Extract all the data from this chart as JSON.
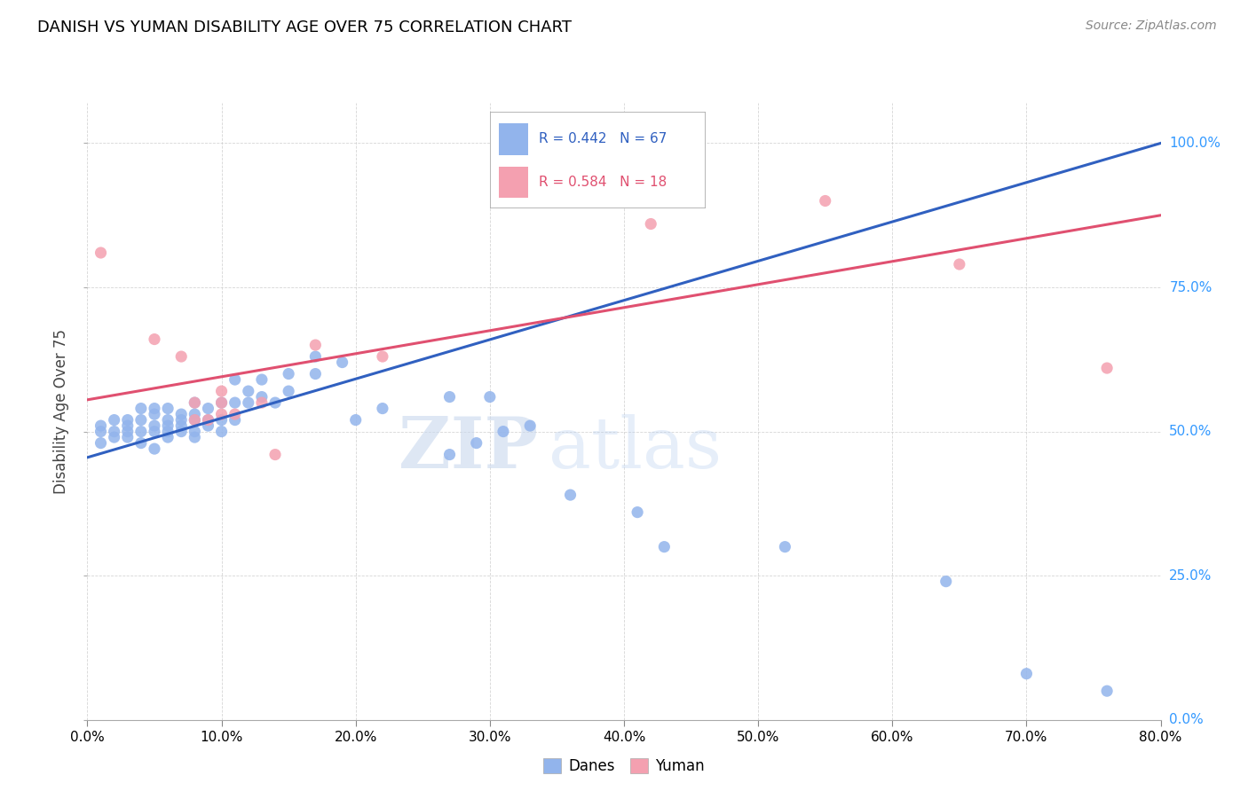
{
  "title": "DANISH VS YUMAN DISABILITY AGE OVER 75 CORRELATION CHART",
  "source": "Source: ZipAtlas.com",
  "ylabel": "Disability Age Over 75",
  "xlim": [
    0.0,
    0.8
  ],
  "ylim": [
    0.0,
    1.07
  ],
  "watermark_zip": "ZIP",
  "watermark_atlas": "atlas",
  "legend_blue_label": "Danes",
  "legend_pink_label": "Yuman",
  "blue_R": 0.442,
  "blue_N": 67,
  "pink_R": 0.584,
  "pink_N": 18,
  "blue_color": "#92B4EC",
  "pink_color": "#F4A0B0",
  "blue_line_color": "#3060C0",
  "pink_line_color": "#E05070",
  "danes_x": [
    0.01,
    0.01,
    0.01,
    0.02,
    0.02,
    0.02,
    0.03,
    0.03,
    0.03,
    0.03,
    0.04,
    0.04,
    0.04,
    0.04,
    0.05,
    0.05,
    0.05,
    0.05,
    0.05,
    0.06,
    0.06,
    0.06,
    0.06,
    0.06,
    0.07,
    0.07,
    0.07,
    0.07,
    0.08,
    0.08,
    0.08,
    0.08,
    0.08,
    0.09,
    0.09,
    0.09,
    0.1,
    0.1,
    0.1,
    0.11,
    0.11,
    0.11,
    0.12,
    0.12,
    0.13,
    0.13,
    0.14,
    0.15,
    0.15,
    0.17,
    0.17,
    0.19,
    0.2,
    0.22,
    0.27,
    0.27,
    0.29,
    0.3,
    0.31,
    0.33,
    0.36,
    0.41,
    0.43,
    0.52,
    0.64,
    0.7,
    0.76
  ],
  "danes_y": [
    0.48,
    0.5,
    0.51,
    0.49,
    0.5,
    0.52,
    0.49,
    0.5,
    0.51,
    0.52,
    0.48,
    0.5,
    0.52,
    0.54,
    0.47,
    0.5,
    0.51,
    0.53,
    0.54,
    0.49,
    0.5,
    0.51,
    0.52,
    0.54,
    0.5,
    0.51,
    0.52,
    0.53,
    0.49,
    0.5,
    0.52,
    0.53,
    0.55,
    0.51,
    0.52,
    0.54,
    0.5,
    0.52,
    0.55,
    0.52,
    0.55,
    0.59,
    0.55,
    0.57,
    0.56,
    0.59,
    0.55,
    0.57,
    0.6,
    0.6,
    0.63,
    0.62,
    0.52,
    0.54,
    0.46,
    0.56,
    0.48,
    0.56,
    0.5,
    0.51,
    0.39,
    0.36,
    0.3,
    0.3,
    0.24,
    0.08,
    0.05
  ],
  "yuman_x": [
    0.01,
    0.05,
    0.07,
    0.08,
    0.08,
    0.09,
    0.1,
    0.1,
    0.1,
    0.11,
    0.13,
    0.14,
    0.17,
    0.22,
    0.42,
    0.55,
    0.65,
    0.76
  ],
  "yuman_y": [
    0.81,
    0.66,
    0.63,
    0.55,
    0.52,
    0.52,
    0.53,
    0.55,
    0.57,
    0.53,
    0.55,
    0.46,
    0.65,
    0.63,
    0.86,
    0.9,
    0.79,
    0.61
  ],
  "blue_line_x0": 0.0,
  "blue_line_y0": 0.455,
  "blue_line_x1": 0.8,
  "blue_line_y1": 1.0,
  "pink_line_x0": 0.0,
  "pink_line_y0": 0.555,
  "pink_line_x1": 0.8,
  "pink_line_y1": 0.875
}
